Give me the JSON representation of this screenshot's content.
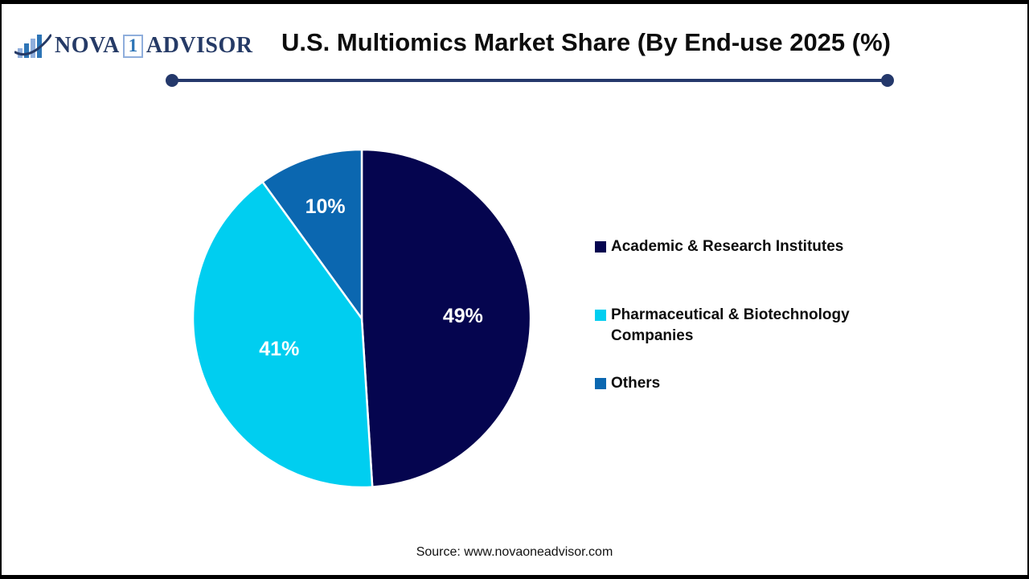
{
  "brand": {
    "name_part1": "NOVA",
    "name_part2": "1",
    "name_part3": "ADVISOR",
    "navy": "#253a66",
    "light_blue": "#8faedc",
    "mid_blue": "#2e75b6"
  },
  "header": {
    "title": "U.S. Multiomics Market Share (By End-use 2025 (%)",
    "underline_color": "#24386b"
  },
  "chart_data": {
    "type": "pie",
    "title": "U.S. Multiomics Market Share (By End-use 2025 (%)",
    "categories": [
      "Academic & Research Institutes",
      "Pharmaceutical & Biotechnology Companies",
      "Others"
    ],
    "values": [
      49,
      41,
      10
    ],
    "data_labels": [
      "49%",
      "41%",
      "10%"
    ],
    "colors": [
      "#05054f",
      "#00cef0",
      "#0b67b0"
    ],
    "data_label_color": "#ffffff",
    "slice_border_color": "#ffffff",
    "start_angle_deg": 0,
    "direction": "clockwise",
    "legend_position": "right"
  },
  "footer": {
    "source": "Source: www.novaoneadvisor.com"
  }
}
